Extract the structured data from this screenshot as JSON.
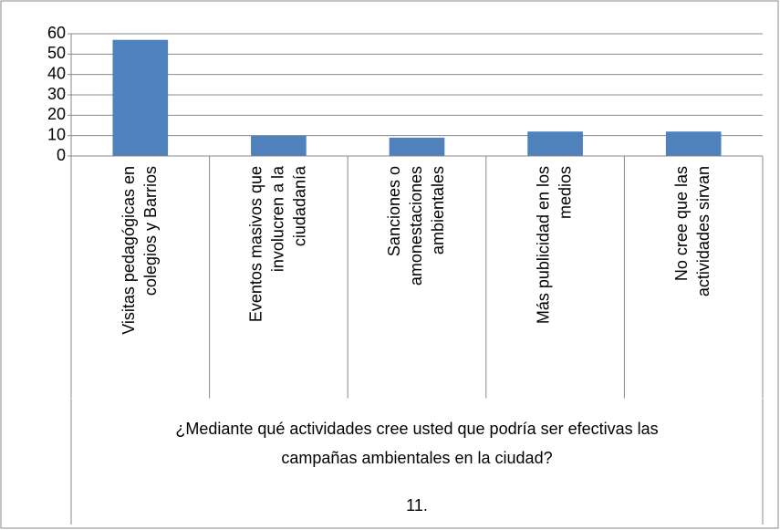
{
  "chart_data": {
    "type": "bar",
    "categories": [
      "Visitas pedagógicas  en\ncolegios y Barrios",
      "Eventos masivos que\ninvolucren a la\nciudadanía",
      "Sanciones o\namonestaciones\nambientales",
      "Más publicidad en los\nmedios",
      "No cree que las\nactividades sirvan"
    ],
    "category_group": "¿Mediante qué actividades cree usted que podría ser efectivas las\ncampañas ambientales en la ciudad?",
    "category_outer": "11.",
    "values": [
      57,
      10,
      9,
      12,
      12
    ],
    "color": "#4f81bd",
    "ylim": [
      0,
      60
    ],
    "yticks": [
      0,
      10,
      20,
      30,
      40,
      50,
      60
    ],
    "grid": true
  }
}
